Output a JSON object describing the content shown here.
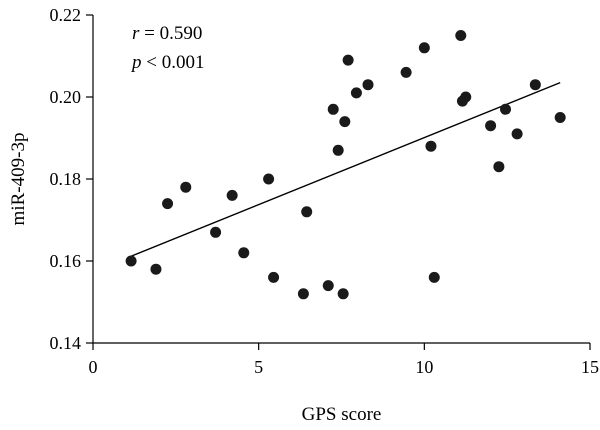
{
  "chart_data": {
    "type": "scatter",
    "xlabel": "GPS score",
    "ylabel": "miR-409-3p",
    "xlim": [
      0,
      15
    ],
    "ylim": [
      0.14,
      0.22
    ],
    "x_ticks": [
      0,
      5,
      10,
      15
    ],
    "x_tick_labels": [
      "0",
      "5",
      "10",
      "15"
    ],
    "y_ticks": [
      0.14,
      0.16,
      0.18,
      0.2,
      0.22
    ],
    "y_tick_labels": [
      "0.14",
      "0.16",
      "0.18",
      "0.20",
      "0.22"
    ],
    "grid": false,
    "annotations": [
      {
        "var": "r",
        "text": " = 0.590"
      },
      {
        "var": "p",
        "text": " < 0.001"
      }
    ],
    "trendline": {
      "x": [
        1.1,
        14.1
      ],
      "y": [
        0.161,
        0.2035
      ]
    },
    "points": [
      {
        "x": 1.15,
        "y": 0.16
      },
      {
        "x": 1.9,
        "y": 0.158
      },
      {
        "x": 2.25,
        "y": 0.174
      },
      {
        "x": 2.8,
        "y": 0.178
      },
      {
        "x": 3.7,
        "y": 0.167
      },
      {
        "x": 4.2,
        "y": 0.176
      },
      {
        "x": 4.55,
        "y": 0.162
      },
      {
        "x": 5.3,
        "y": 0.18
      },
      {
        "x": 5.45,
        "y": 0.156
      },
      {
        "x": 6.35,
        "y": 0.152
      },
      {
        "x": 6.45,
        "y": 0.172
      },
      {
        "x": 7.1,
        "y": 0.154
      },
      {
        "x": 7.25,
        "y": 0.197
      },
      {
        "x": 7.4,
        "y": 0.187
      },
      {
        "x": 7.55,
        "y": 0.152
      },
      {
        "x": 7.6,
        "y": 0.194
      },
      {
        "x": 7.7,
        "y": 0.209
      },
      {
        "x": 7.95,
        "y": 0.201
      },
      {
        "x": 8.3,
        "y": 0.203
      },
      {
        "x": 9.45,
        "y": 0.206
      },
      {
        "x": 10.0,
        "y": 0.212
      },
      {
        "x": 10.2,
        "y": 0.188
      },
      {
        "x": 10.3,
        "y": 0.156
      },
      {
        "x": 11.1,
        "y": 0.215
      },
      {
        "x": 11.15,
        "y": 0.199
      },
      {
        "x": 11.25,
        "y": 0.2
      },
      {
        "x": 12.0,
        "y": 0.193
      },
      {
        "x": 12.25,
        "y": 0.183
      },
      {
        "x": 12.45,
        "y": 0.197
      },
      {
        "x": 12.8,
        "y": 0.191
      },
      {
        "x": 13.35,
        "y": 0.203
      },
      {
        "x": 14.1,
        "y": 0.195
      }
    ]
  }
}
